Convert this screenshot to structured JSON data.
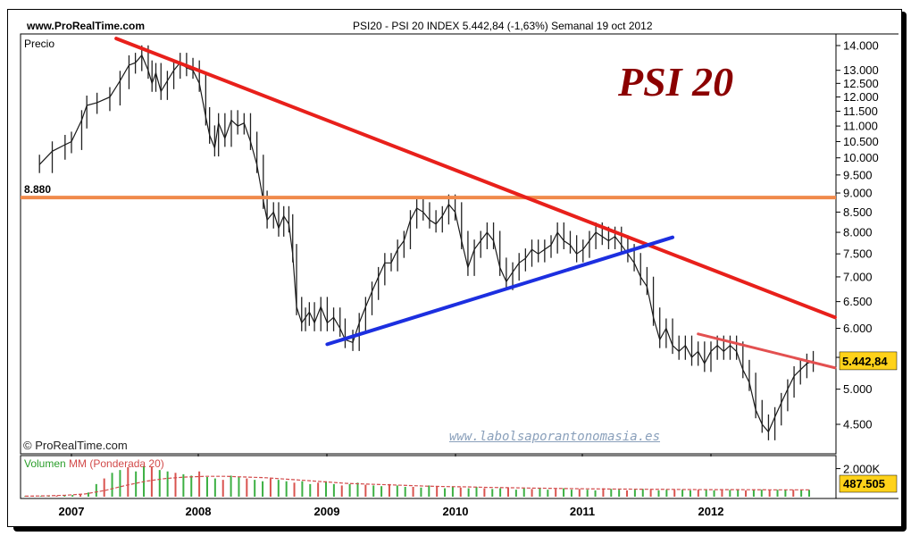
{
  "header": {
    "site": "www.ProRealTime.com",
    "title": "PSI20 - PSI 20 INDEX     5.442,84 (-1,63%)     Semanal  19 oct 2012"
  },
  "labels": {
    "precio": "Precio",
    "copyright": "© ProRealTime.com",
    "brand": "PSI 20",
    "website": "www.labolsaporantonomasia.es",
    "volumen": "Volumen",
    "mm": "MM (Ponderada 20)"
  },
  "colors": {
    "downtrend": "#e8201b",
    "support": "#f08a4b",
    "uptrend": "#1c2fe0",
    "short_downtrend": "#e35050",
    "price_badge": "#ffd21a",
    "volume_up": "#3cb043",
    "volume_down": "#d9534f",
    "volume_ma": "#d24a4a"
  },
  "chart_data": {
    "type": "line",
    "title": "PSI20 - PSI 20 INDEX",
    "ylabel": "Precio",
    "y_scale": "log",
    "ylim": [
      4200,
      14400
    ],
    "y_ticks": [
      4500,
      5000,
      5500,
      6000,
      6500,
      7000,
      7500,
      8000,
      8500,
      9000,
      9500,
      10000,
      10500,
      11000,
      11500,
      12000,
      12500,
      13000,
      14000
    ],
    "y_tick_labels": [
      "4.500",
      "5.000",
      "",
      "6.000",
      "6.500",
      "7.000",
      "7.500",
      "8.000",
      "8.500",
      "9.000",
      "9.500",
      "10.000",
      "10.500",
      "11.000",
      "11.500",
      "12.000",
      "12.500",
      "13.000",
      "14.000"
    ],
    "x_labels": [
      "2007",
      "2008",
      "2009",
      "2010",
      "2011",
      "2012"
    ],
    "last_value_label": "5.442,84",
    "support_level": {
      "value": 8880,
      "label": "8.880"
    },
    "price_series": [
      [
        2006.75,
        9800
      ],
      [
        2006.85,
        10200
      ],
      [
        2006.95,
        10400
      ],
      [
        2007.0,
        10500
      ],
      [
        2007.08,
        11200
      ],
      [
        2007.12,
        11700
      ],
      [
        2007.2,
        11800
      ],
      [
        2007.3,
        12000
      ],
      [
        2007.38,
        12600
      ],
      [
        2007.45,
        13200
      ],
      [
        2007.5,
        13300
      ],
      [
        2007.55,
        13600
      ],
      [
        2007.6,
        13000
      ],
      [
        2007.63,
        12500
      ],
      [
        2007.66,
        12900
      ],
      [
        2007.7,
        12200
      ],
      [
        2007.75,
        12600
      ],
      [
        2007.8,
        13000
      ],
      [
        2007.85,
        13300
      ],
      [
        2007.9,
        13100
      ],
      [
        2007.95,
        13000
      ],
      [
        2008.0,
        12500
      ],
      [
        2008.05,
        11300
      ],
      [
        2008.08,
        10700
      ],
      [
        2008.12,
        10300
      ],
      [
        2008.15,
        11100
      ],
      [
        2008.2,
        10600
      ],
      [
        2008.25,
        11200
      ],
      [
        2008.3,
        11000
      ],
      [
        2008.35,
        11100
      ],
      [
        2008.4,
        10500
      ],
      [
        2008.45,
        9800
      ],
      [
        2008.5,
        8800
      ],
      [
        2008.53,
        8300
      ],
      [
        2008.58,
        8500
      ],
      [
        2008.62,
        8100
      ],
      [
        2008.66,
        8400
      ],
      [
        2008.7,
        8200
      ],
      [
        2008.73,
        7500
      ],
      [
        2008.76,
        6400
      ],
      [
        2008.8,
        6100
      ],
      [
        2008.83,
        6200
      ],
      [
        2008.86,
        6300
      ],
      [
        2008.9,
        6100
      ],
      [
        2008.95,
        6400
      ],
      [
        2009.0,
        6100
      ],
      [
        2009.05,
        6200
      ],
      [
        2009.1,
        6000
      ],
      [
        2009.14,
        5800
      ],
      [
        2009.2,
        5750
      ],
      [
        2009.25,
        6100
      ],
      [
        2009.3,
        6400
      ],
      [
        2009.35,
        6700
      ],
      [
        2009.4,
        7000
      ],
      [
        2009.45,
        7300
      ],
      [
        2009.5,
        7300
      ],
      [
        2009.55,
        7600
      ],
      [
        2009.6,
        7800
      ],
      [
        2009.65,
        8300
      ],
      [
        2009.7,
        8600
      ],
      [
        2009.75,
        8500
      ],
      [
        2009.8,
        8300
      ],
      [
        2009.85,
        8200
      ],
      [
        2009.9,
        8400
      ],
      [
        2009.95,
        8700
      ],
      [
        2010.0,
        8500
      ],
      [
        2010.05,
        7800
      ],
      [
        2010.1,
        7200
      ],
      [
        2010.15,
        7600
      ],
      [
        2010.2,
        7800
      ],
      [
        2010.25,
        8000
      ],
      [
        2010.3,
        7800
      ],
      [
        2010.35,
        7200
      ],
      [
        2010.4,
        6900
      ],
      [
        2010.45,
        7100
      ],
      [
        2010.5,
        7300
      ],
      [
        2010.55,
        7400
      ],
      [
        2010.6,
        7600
      ],
      [
        2010.65,
        7500
      ],
      [
        2010.7,
        7600
      ],
      [
        2010.75,
        7700
      ],
      [
        2010.8,
        8000
      ],
      [
        2010.85,
        7800
      ],
      [
        2010.9,
        7700
      ],
      [
        2010.95,
        7500
      ],
      [
        2011.0,
        7600
      ],
      [
        2011.05,
        7800
      ],
      [
        2011.1,
        8000
      ],
      [
        2011.15,
        7900
      ],
      [
        2011.2,
        7800
      ],
      [
        2011.25,
        7900
      ],
      [
        2011.3,
        7700
      ],
      [
        2011.35,
        7500
      ],
      [
        2011.4,
        7300
      ],
      [
        2011.45,
        7000
      ],
      [
        2011.5,
        6800
      ],
      [
        2011.55,
        6200
      ],
      [
        2011.6,
        5800
      ],
      [
        2011.65,
        6000
      ],
      [
        2011.7,
        5700
      ],
      [
        2011.75,
        5600
      ],
      [
        2011.8,
        5700
      ],
      [
        2011.85,
        5500
      ],
      [
        2011.9,
        5600
      ],
      [
        2011.95,
        5400
      ],
      [
        2012.0,
        5600
      ],
      [
        2012.05,
        5700
      ],
      [
        2012.1,
        5600
      ],
      [
        2012.15,
        5700
      ],
      [
        2012.2,
        5600
      ],
      [
        2012.25,
        5300
      ],
      [
        2012.3,
        5100
      ],
      [
        2012.35,
        4700
      ],
      [
        2012.4,
        4500
      ],
      [
        2012.45,
        4400
      ],
      [
        2012.5,
        4600
      ],
      [
        2012.55,
        4800
      ],
      [
        2012.6,
        5000
      ],
      [
        2012.65,
        5200
      ],
      [
        2012.7,
        5300
      ],
      [
        2012.75,
        5400
      ],
      [
        2012.8,
        5443
      ]
    ],
    "trendlines": [
      {
        "role": "downtrend",
        "from": [
          2007.35,
          14300
        ],
        "to": [
          2012.97,
          6200
        ]
      },
      {
        "role": "uptrend",
        "from": [
          2009.0,
          5720
        ],
        "to": [
          2011.7,
          7880
        ]
      },
      {
        "role": "short_downtrend",
        "from": [
          2011.9,
          5900
        ],
        "to": [
          2012.97,
          5330
        ]
      }
    ],
    "volume": {
      "label": "Volumen",
      "ma_label": "MM (Ponderada 20)",
      "y_tick_label": "2.000K",
      "last_value_label": "487.505",
      "ylim": [
        0,
        2800
      ],
      "values": [
        40,
        40,
        50,
        60,
        80,
        100,
        120,
        150,
        300,
        900,
        1300,
        1700,
        1900,
        2100,
        1800,
        2200,
        2100,
        1900,
        1800,
        1700,
        1600,
        1500,
        1800,
        1400,
        1300,
        1200,
        1500,
        1400,
        1300,
        1200,
        1100,
        1300,
        1200,
        1100,
        1000,
        1100,
        900,
        1000,
        1100,
        900,
        800,
        900,
        1000,
        850,
        800,
        750,
        900,
        800,
        700,
        700,
        650,
        800,
        700,
        600,
        700,
        650,
        600,
        700,
        600,
        550,
        600,
        650,
        500,
        600,
        550,
        600,
        500,
        550,
        600,
        500,
        550,
        500,
        450,
        600,
        550,
        500,
        450,
        500,
        550,
        500,
        450,
        500,
        480,
        500,
        450,
        500,
        480,
        450,
        500,
        480,
        520,
        450,
        480,
        500,
        470,
        490,
        480,
        490,
        470,
        488
      ],
      "ma": [
        40,
        60,
        100,
        200,
        450,
        800,
        1100,
        1300,
        1400,
        1450,
        1450,
        1400,
        1350,
        1250,
        1150,
        1050,
        950,
        900,
        850,
        800,
        750,
        720,
        700,
        660,
        640,
        620,
        600,
        580,
        560,
        550,
        540,
        530,
        520,
        510,
        500,
        500,
        495,
        490,
        490,
        488
      ]
    }
  }
}
